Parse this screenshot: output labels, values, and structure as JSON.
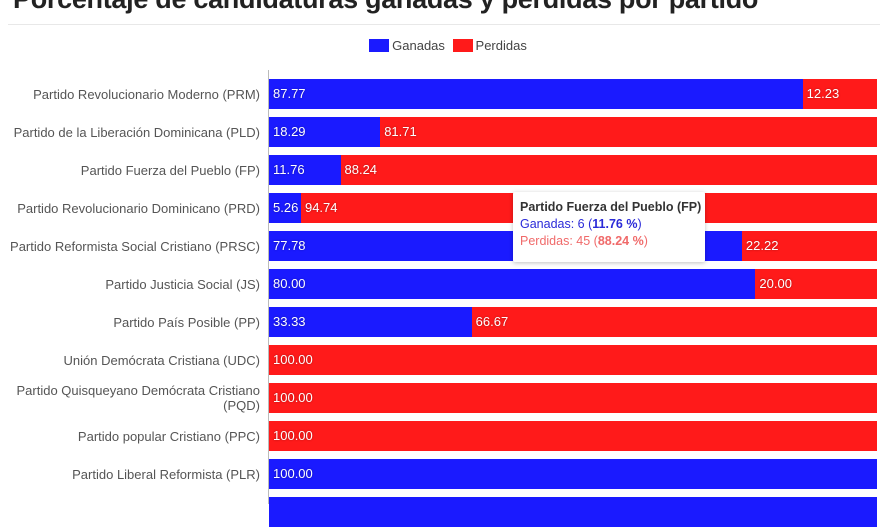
{
  "chart_data": {
    "type": "bar",
    "orientation": "horizontal",
    "stacked": "percent",
    "title": "Porcentaje de candidaturas ganadas y perdidas por partido",
    "xlabel": "",
    "ylabel": "",
    "xlim": [
      0,
      100
    ],
    "legend_position": "top-center",
    "categories": [
      "Partido Revolucionario Moderno (PRM)",
      "Partido de la Liberación Dominicana (PLD)",
      "Partido Fuerza del Pueblo (FP)",
      "Partido Revolucionario Dominicano (PRD)",
      "Partido Reformista Social Cristiano (PRSC)",
      "Partido Justicia Social (JS)",
      "Partido País Posible (PP)",
      "Unión Demócrata Cristiana (UDC)",
      "Partido Quisqueyano Demócrata Cristiano (PQD)",
      "Partido popular Cristiano (PPC)",
      "Partido Liberal Reformista (PLR)",
      ""
    ],
    "series": [
      {
        "name": "Ganadas",
        "color": "#1a1aff",
        "values": [
          87.77,
          18.29,
          11.76,
          5.26,
          77.78,
          80.0,
          33.33,
          0,
          0,
          0,
          100.0,
          100.0
        ]
      },
      {
        "name": "Perdidas",
        "color": "#ff1a1a",
        "values": [
          12.23,
          81.71,
          88.24,
          94.74,
          22.22,
          20.0,
          66.67,
          100.0,
          100.0,
          100.0,
          0,
          0
        ]
      }
    ],
    "tooltip": {
      "title": "Partido Fuerza del Pueblo (FP)",
      "won_label": "Ganadas: 6 (",
      "won_pct": "11.76 %",
      "lost_label": "Perdidas: 45 (",
      "lost_pct": "88.24 %",
      "close": ")"
    }
  }
}
